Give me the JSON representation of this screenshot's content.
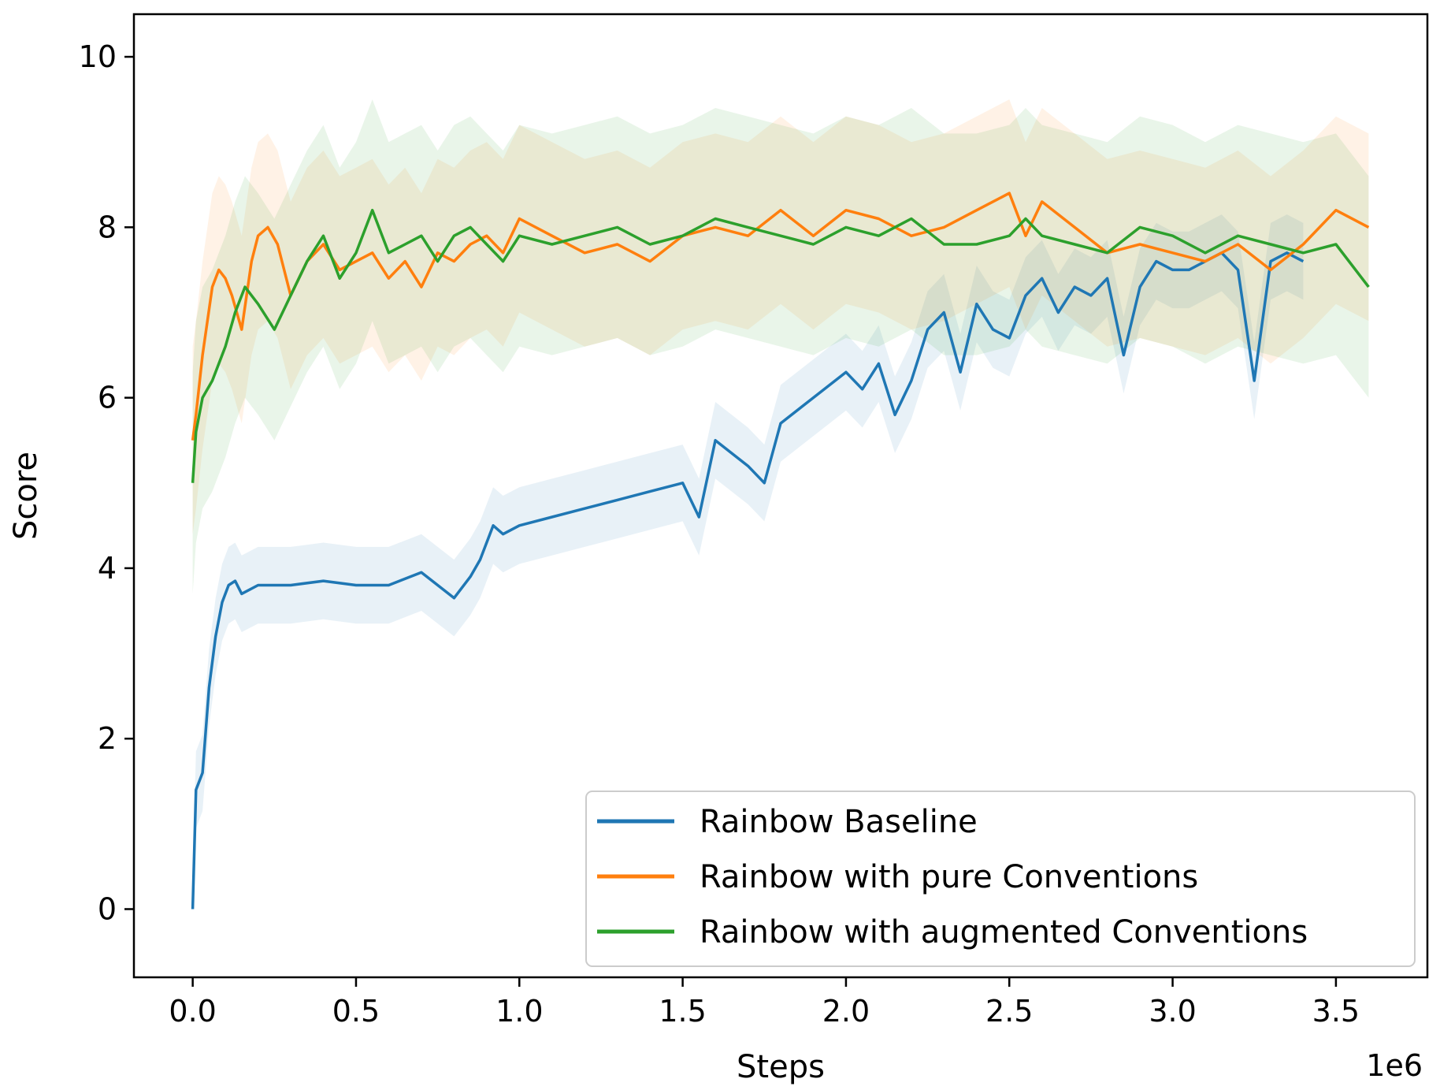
{
  "chart_data": {
    "type": "line",
    "title": "",
    "xlabel": "Steps",
    "ylabel": "Score",
    "x_scale_label": "1e6",
    "xlim": [
      -0.18,
      3.78
    ],
    "ylim": [
      -0.8,
      10.5
    ],
    "xticks": [
      0.0,
      0.5,
      1.0,
      1.5,
      2.0,
      2.5,
      3.0,
      3.5
    ],
    "xtick_labels": [
      "0.0",
      "0.5",
      "1.0",
      "1.5",
      "2.0",
      "2.5",
      "3.0",
      "3.5"
    ],
    "yticks": [
      0,
      2,
      4,
      6,
      8,
      10
    ],
    "ytick_labels": [
      "0",
      "2",
      "4",
      "6",
      "8",
      "10"
    ],
    "legend_position": "bottom-right",
    "series": [
      {
        "name": "Rainbow Baseline",
        "color": "#1f77b4",
        "band_width": 0.45,
        "x": [
          0,
          0.01,
          0.03,
          0.05,
          0.07,
          0.09,
          0.11,
          0.13,
          0.15,
          0.2,
          0.3,
          0.4,
          0.5,
          0.6,
          0.7,
          0.8,
          0.85,
          0.88,
          0.92,
          0.95,
          1.0,
          1.1,
          1.2,
          1.3,
          1.4,
          1.5,
          1.55,
          1.6,
          1.7,
          1.75,
          1.8,
          1.9,
          2.0,
          2.05,
          2.1,
          2.15,
          2.2,
          2.25,
          2.3,
          2.35,
          2.4,
          2.45,
          2.5,
          2.55,
          2.6,
          2.65,
          2.7,
          2.75,
          2.8,
          2.85,
          2.9,
          2.95,
          3.0,
          3.05,
          3.1,
          3.15,
          3.2,
          3.25,
          3.3,
          3.35,
          3.4
        ],
        "y": [
          0,
          1.4,
          1.6,
          2.6,
          3.2,
          3.6,
          3.8,
          3.85,
          3.7,
          3.8,
          3.8,
          3.85,
          3.8,
          3.8,
          3.95,
          3.65,
          3.9,
          4.1,
          4.5,
          4.4,
          4.5,
          4.6,
          4.7,
          4.8,
          4.9,
          5.0,
          4.6,
          5.5,
          5.2,
          5.0,
          5.7,
          6.0,
          6.3,
          6.1,
          6.4,
          5.8,
          6.2,
          6.8,
          7.0,
          6.3,
          7.1,
          6.8,
          6.7,
          7.2,
          7.4,
          7.0,
          7.3,
          7.2,
          7.4,
          6.5,
          7.3,
          7.6,
          7.5,
          7.5,
          7.6,
          7.7,
          7.5,
          6.2,
          7.6,
          7.7,
          7.6
        ]
      },
      {
        "name": "Rainbow with pure Conventions",
        "color": "#ff7f0e",
        "band_width": 1.1,
        "x": [
          0,
          0.01,
          0.03,
          0.06,
          0.08,
          0.1,
          0.12,
          0.15,
          0.18,
          0.2,
          0.23,
          0.26,
          0.3,
          0.35,
          0.4,
          0.45,
          0.5,
          0.55,
          0.6,
          0.65,
          0.7,
          0.75,
          0.8,
          0.85,
          0.9,
          0.95,
          1.0,
          1.1,
          1.2,
          1.3,
          1.4,
          1.5,
          1.6,
          1.7,
          1.8,
          1.9,
          2.0,
          2.1,
          2.2,
          2.3,
          2.4,
          2.5,
          2.55,
          2.6,
          2.7,
          2.8,
          2.9,
          3.0,
          3.1,
          3.2,
          3.3,
          3.4,
          3.5,
          3.6
        ],
        "y": [
          5.5,
          5.8,
          6.5,
          7.3,
          7.5,
          7.4,
          7.2,
          6.8,
          7.6,
          7.9,
          8.0,
          7.8,
          7.2,
          7.6,
          7.8,
          7.5,
          7.6,
          7.7,
          7.4,
          7.6,
          7.3,
          7.7,
          7.6,
          7.8,
          7.9,
          7.7,
          8.1,
          7.9,
          7.7,
          7.8,
          7.6,
          7.9,
          8.0,
          7.9,
          8.2,
          7.9,
          8.2,
          8.1,
          7.9,
          8.0,
          8.2,
          8.4,
          7.9,
          8.3,
          8.0,
          7.7,
          7.8,
          7.7,
          7.6,
          7.8,
          7.5,
          7.8,
          8.2,
          8.0
        ]
      },
      {
        "name": "Rainbow with augmented Conventions",
        "color": "#2ca02c",
        "band_width": 1.3,
        "x": [
          0,
          0.01,
          0.03,
          0.06,
          0.08,
          0.1,
          0.13,
          0.16,
          0.2,
          0.25,
          0.3,
          0.35,
          0.4,
          0.45,
          0.5,
          0.55,
          0.6,
          0.65,
          0.7,
          0.75,
          0.8,
          0.85,
          0.9,
          0.95,
          1.0,
          1.1,
          1.2,
          1.3,
          1.4,
          1.5,
          1.6,
          1.7,
          1.8,
          1.9,
          2.0,
          2.1,
          2.2,
          2.3,
          2.4,
          2.5,
          2.55,
          2.6,
          2.7,
          2.8,
          2.9,
          3.0,
          3.1,
          3.2,
          3.3,
          3.4,
          3.5,
          3.6
        ],
        "y": [
          5.0,
          5.6,
          6.0,
          6.2,
          6.4,
          6.6,
          7.0,
          7.3,
          7.1,
          6.8,
          7.2,
          7.6,
          7.9,
          7.4,
          7.7,
          8.2,
          7.7,
          7.8,
          7.9,
          7.6,
          7.9,
          8.0,
          7.8,
          7.6,
          7.9,
          7.8,
          7.9,
          8.0,
          7.8,
          7.9,
          8.1,
          8.0,
          7.9,
          7.8,
          8.0,
          7.9,
          8.1,
          7.8,
          7.8,
          7.9,
          8.1,
          7.9,
          7.8,
          7.7,
          8.0,
          7.9,
          7.7,
          7.9,
          7.8,
          7.7,
          7.8,
          7.3
        ]
      }
    ]
  }
}
